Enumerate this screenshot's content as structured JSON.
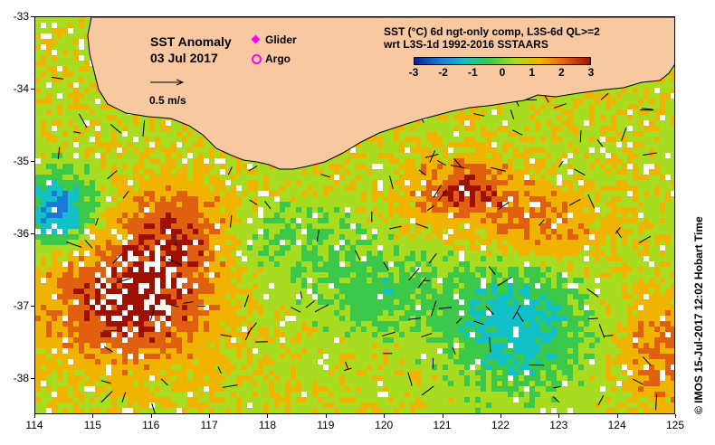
{
  "title": {
    "line1": "SST Anomaly",
    "line2": "03 Jul 2017"
  },
  "legend": {
    "glider": "Glider",
    "argo": "Argo",
    "glider_color": "#ff00ff",
    "argo_color": "#ff00ff"
  },
  "scale": {
    "label": "0.5 m/s"
  },
  "colorbar": {
    "line1": "SST (°C) 6d ngt-only comp, L3S-6d QL>=2",
    "line2": "wrt L3S-1d 1992-2016 SSTAARS",
    "ticks": [
      "-3",
      "-2",
      "-1",
      "0",
      "1",
      "2",
      "3"
    ],
    "colors": [
      "#0a1e96",
      "#1a7ad8",
      "#12c0c8",
      "#3cc84a",
      "#a8dc20",
      "#f0b400",
      "#e06010",
      "#a01000"
    ]
  },
  "x_ticks": [
    "114",
    "115",
    "116",
    "117",
    "118",
    "119",
    "120",
    "121",
    "122",
    "123",
    "124",
    "125"
  ],
  "y_ticks": [
    "-33",
    "-34",
    "-35",
    "-36",
    "-37",
    "-38"
  ],
  "timestamp": "©  IMOS 15-Jul-2017 12:02 Hobart Time",
  "land_color": "#f8c8a0",
  "map": {
    "lon_range": [
      114,
      125
    ],
    "lat_range": [
      -38.5,
      -33
    ]
  }
}
